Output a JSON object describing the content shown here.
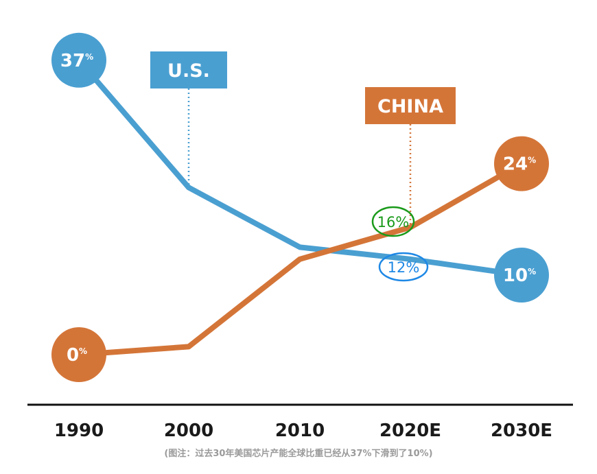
{
  "chart_data": {
    "type": "line",
    "x": [
      "1990",
      "2000",
      "2010",
      "2020E",
      "2030E"
    ],
    "ylim": [
      0,
      40
    ],
    "grid": false,
    "series": [
      {
        "name": "U.S.",
        "color": "#4a9fd1",
        "values": [
          37,
          21,
          13.5,
          12,
          10
        ],
        "start_label": "37",
        "end_label": "10"
      },
      {
        "name": "CHINA",
        "color": "#d47538",
        "values": [
          0,
          1,
          12,
          16,
          24
        ],
        "start_label": "0",
        "end_label": "24"
      }
    ],
    "annotations": [
      {
        "text": "16%",
        "x": "2020E",
        "series": "CHINA",
        "value": 16,
        "color": "#1a9a1a"
      },
      {
        "text": "12%",
        "x": "2020E",
        "series": "U.S.",
        "value": 12,
        "color": "#1e88e5"
      }
    ]
  },
  "percent_sign": "%",
  "caption": "(图注：过去30年美国芯片产能全球比重已经从37%下滑到了10%)"
}
